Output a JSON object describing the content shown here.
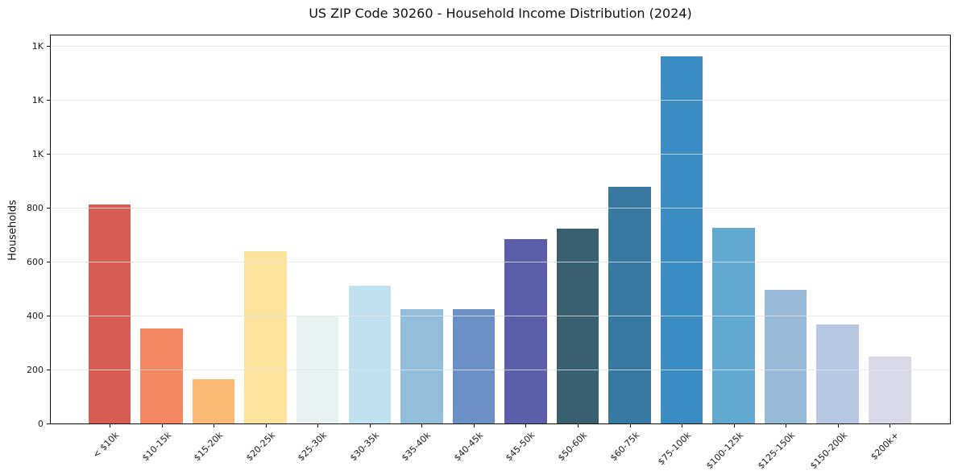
{
  "chart_data": {
    "type": "bar",
    "title": "US ZIP Code 30260 - Household Income Distribution (2024)",
    "xlabel": "",
    "ylabel": "Households",
    "categories": [
      "< $10k",
      "$10-15k",
      "$15-20k",
      "$20-25k",
      "$25-30k",
      "$30-35k",
      "$35-40k",
      "$40-45k",
      "$45-50k",
      "$50-60k",
      "$60-75k",
      "$75-100k",
      "$100-125k",
      "$125-150k",
      "$150-200k",
      "$200k+"
    ],
    "values": [
      812,
      352,
      165,
      637,
      397,
      510,
      424,
      424,
      684,
      722,
      876,
      1360,
      724,
      494,
      366,
      248
    ],
    "bar_colors": [
      "#d75d52",
      "#f58763",
      "#fcba77",
      "#fde39e",
      "#e8f2f0",
      "#bfe2ee",
      "#92bedb",
      "#6b90c5",
      "#5b5fa9",
      "#38606f",
      "#3879a2",
      "#3a8cc3",
      "#61a9d0",
      "#97bad9",
      "#b9c8e2",
      "#d9d9e7"
    ],
    "ylim": [
      0,
      1438
    ],
    "yticks": [
      {
        "value": 0,
        "label": "0"
      },
      {
        "value": 200,
        "label": "200"
      },
      {
        "value": 400,
        "label": "400"
      },
      {
        "value": 600,
        "label": "600"
      },
      {
        "value": 800,
        "label": "800"
      },
      {
        "value": 1000,
        "label": "1K"
      },
      {
        "value": 1200,
        "label": "1K"
      },
      {
        "value": 1400,
        "label": "1K"
      }
    ],
    "grid": "horizontal",
    "legend": "none",
    "colors": {
      "background": "#ffffff",
      "gridline": "#e8e8e8",
      "spine": "#111111",
      "text": "#1a1a1a"
    }
  }
}
